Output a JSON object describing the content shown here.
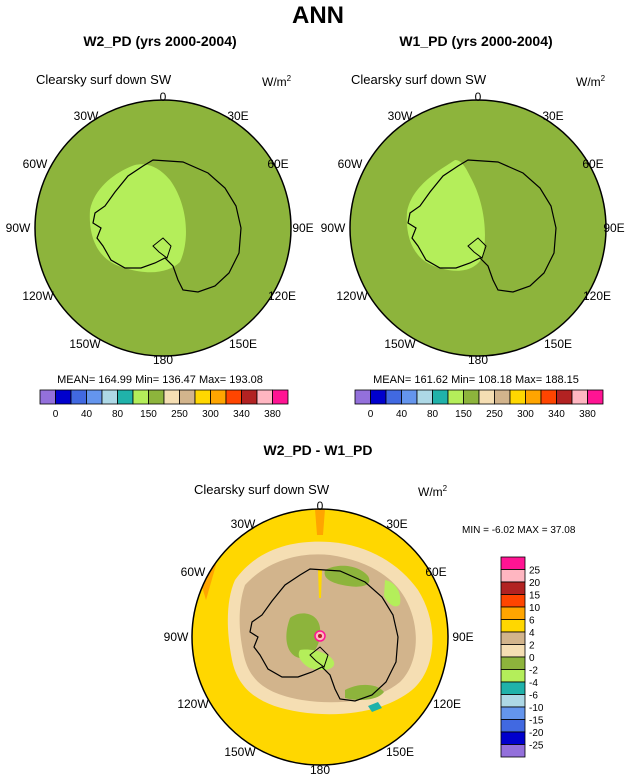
{
  "page": {
    "title": "ANN"
  },
  "panels": {
    "left": {
      "title": "W2_PD (yrs 2000-2004)",
      "variable": "Clearsky surf down SW",
      "units_base": "W/m",
      "units_exp": "2",
      "lon_labels": [
        "0",
        "30E",
        "60E",
        "90E",
        "120E",
        "150E",
        "180",
        "150W",
        "120W",
        "90W",
        "60W",
        "30W"
      ],
      "stats": "MEAN= 164.99  Min= 136.47  Max= 193.08",
      "colorbar_colors": [
        "#9370db",
        "#0000cd",
        "#4169e1",
        "#6495ed",
        "#add8e6",
        "#20b2aa",
        "#b4ee5a",
        "#8db43c",
        "#f5deb3",
        "#d2b48c",
        "#ffd700",
        "#ffa500",
        "#ff4500",
        "#b22222",
        "#ffb6c1",
        "#ff1493"
      ],
      "colorbar_labels": [
        "0",
        "40",
        "80",
        "150",
        "250",
        "300",
        "340",
        "380"
      ]
    },
    "right": {
      "title": "W1_PD (yrs 2000-2004)",
      "variable": "Clearsky surf down SW",
      "units_base": "W/m",
      "units_exp": "2",
      "lon_labels": [
        "0",
        "30E",
        "60E",
        "90E",
        "120E",
        "150E",
        "180",
        "150W",
        "120W",
        "90W",
        "60W",
        "30W"
      ],
      "stats": "MEAN= 161.62  Min= 108.18  Max= 188.15",
      "colorbar_colors": [
        "#9370db",
        "#0000cd",
        "#4169e1",
        "#6495ed",
        "#add8e6",
        "#20b2aa",
        "#b4ee5a",
        "#8db43c",
        "#f5deb3",
        "#d2b48c",
        "#ffd700",
        "#ffa500",
        "#ff4500",
        "#b22222",
        "#ffb6c1",
        "#ff1493"
      ],
      "colorbar_labels": [
        "0",
        "40",
        "80",
        "150",
        "250",
        "300",
        "340",
        "380"
      ]
    },
    "diff": {
      "title": "W2_PD - W1_PD",
      "variable": "Clearsky surf down SW",
      "units_base": "W/m",
      "units_exp": "2",
      "lon_labels": [
        "0",
        "30E",
        "60E",
        "90E",
        "120E",
        "150E",
        "180",
        "150W",
        "120W",
        "90W",
        "60W",
        "30W"
      ],
      "stats": "MIN =  -6.02 MAX =  37.08",
      "colorbar_colors": [
        "#ff1493",
        "#ffb6c1",
        "#b22222",
        "#ff4500",
        "#ffa500",
        "#ffd700",
        "#d2b48c",
        "#f5deb3",
        "#8db43c",
        "#b4ee5a",
        "#20b2aa",
        "#add8e6",
        "#6495ed",
        "#4169e1",
        "#0000cd",
        "#9370db"
      ],
      "colorbar_labels": [
        "25",
        "20",
        "15",
        "10",
        "6",
        "4",
        "2",
        "0",
        "-2",
        "-4",
        "-6",
        "-10",
        "-15",
        "-20",
        "-25"
      ]
    }
  },
  "colors": {
    "ocean_green": "#8db43c",
    "land_lightgreen": "#b4ee5a",
    "diff_yellow": "#ffd700",
    "diff_tan": "#d2b48c",
    "diff_wheat": "#f5deb3"
  }
}
